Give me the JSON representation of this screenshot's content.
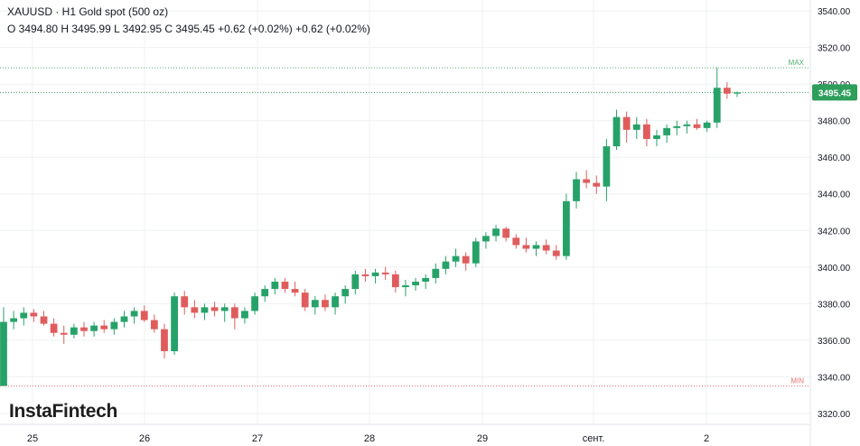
{
  "header": {
    "title": "XAUUSD · H1 Gold spot (500 oz)",
    "ohlc": "O 3494.80 H 3495.99 L 3492.95 C 3495.45 +0.62 (+0.02%) +0.62 (+0.02%)"
  },
  "logo": "InstaFintech",
  "colors": {
    "up": "#26a269",
    "down": "#e05c5c",
    "max_line": "#4caf6e",
    "min_line": "#e57373",
    "last_price_bg": "#2e9e5b"
  },
  "chart_data": {
    "type": "candlestick",
    "symbol": "XAUUSD",
    "timeframe": "H1",
    "y_axis": {
      "ticks": [
        "3320.00",
        "3340.00",
        "3360.00",
        "3380.00",
        "3400.00",
        "3420.00",
        "3440.00",
        "3460.00",
        "3480.00",
        "3500.00",
        "3520.00",
        "3540.00"
      ],
      "range": [
        3314,
        3546
      ]
    },
    "x_axis": {
      "ticks": [
        "25",
        "26",
        "27",
        "28",
        "29",
        "сент.",
        "2"
      ]
    },
    "max_line": {
      "label": "MAX",
      "value": 3509
    },
    "min_line": {
      "label": "MIN",
      "value": 3335
    },
    "last_price": {
      "label": "3495.45",
      "value": 3495.45
    },
    "ohlc": [
      [
        3335,
        3378,
        3335,
        3370
      ],
      [
        3370,
        3376,
        3366,
        3372
      ],
      [
        3372,
        3378,
        3368,
        3375
      ],
      [
        3375,
        3377,
        3370,
        3373
      ],
      [
        3373,
        3376,
        3368,
        3369
      ],
      [
        3369,
        3372,
        3362,
        3364
      ],
      [
        3364,
        3368,
        3358,
        3363
      ],
      [
        3363,
        3369,
        3361,
        3367
      ],
      [
        3367,
        3370,
        3362,
        3365
      ],
      [
        3365,
        3370,
        3362,
        3368
      ],
      [
        3368,
        3371,
        3364,
        3366
      ],
      [
        3366,
        3372,
        3363,
        3370
      ],
      [
        3370,
        3376,
        3367,
        3373
      ],
      [
        3373,
        3378,
        3369,
        3376
      ],
      [
        3376,
        3379,
        3370,
        3371
      ],
      [
        3371,
        3374,
        3364,
        3366
      ],
      [
        3366,
        3369,
        3350,
        3354
      ],
      [
        3354,
        3386,
        3352,
        3384
      ],
      [
        3384,
        3387,
        3374,
        3378
      ],
      [
        3378,
        3382,
        3372,
        3375
      ],
      [
        3375,
        3380,
        3371,
        3378
      ],
      [
        3378,
        3381,
        3373,
        3376
      ],
      [
        3376,
        3380,
        3370,
        3378
      ],
      [
        3378,
        3380,
        3366,
        3372
      ],
      [
        3372,
        3378,
        3369,
        3376
      ],
      [
        3376,
        3386,
        3374,
        3384
      ],
      [
        3384,
        3390,
        3381,
        3388
      ],
      [
        3388,
        3394,
        3385,
        3392
      ],
      [
        3392,
        3394,
        3386,
        3388
      ],
      [
        3388,
        3392,
        3384,
        3386
      ],
      [
        3386,
        3388,
        3376,
        3378
      ],
      [
        3378,
        3384,
        3374,
        3382
      ],
      [
        3382,
        3385,
        3376,
        3378
      ],
      [
        3378,
        3386,
        3374,
        3384
      ],
      [
        3384,
        3390,
        3380,
        3388
      ],
      [
        3388,
        3398,
        3385,
        3396
      ],
      [
        3396,
        3399,
        3392,
        3395
      ],
      [
        3395,
        3399,
        3391,
        3397
      ],
      [
        3397,
        3400,
        3393,
        3396
      ],
      [
        3396,
        3398,
        3386,
        3389
      ],
      [
        3389,
        3393,
        3384,
        3390
      ],
      [
        3390,
        3394,
        3387,
        3392
      ],
      [
        3392,
        3396,
        3388,
        3394
      ],
      [
        3394,
        3402,
        3391,
        3399
      ],
      [
        3399,
        3406,
        3396,
        3403
      ],
      [
        3403,
        3410,
        3400,
        3406
      ],
      [
        3406,
        3408,
        3398,
        3402
      ],
      [
        3402,
        3416,
        3400,
        3414
      ],
      [
        3414,
        3419,
        3410,
        3417
      ],
      [
        3417,
        3423,
        3414,
        3421
      ],
      [
        3421,
        3422,
        3414,
        3416
      ],
      [
        3416,
        3418,
        3410,
        3412
      ],
      [
        3412,
        3416,
        3408,
        3410
      ],
      [
        3410,
        3414,
        3406,
        3412
      ],
      [
        3412,
        3415,
        3407,
        3409
      ],
      [
        3409,
        3412,
        3404,
        3406
      ],
      [
        3406,
        3440,
        3404,
        3436
      ],
      [
        3436,
        3452,
        3432,
        3448
      ],
      [
        3448,
        3453,
        3443,
        3446
      ],
      [
        3446,
        3450,
        3440,
        3444
      ],
      [
        3444,
        3470,
        3436,
        3466
      ],
      [
        3466,
        3486,
        3464,
        3482
      ],
      [
        3482,
        3485,
        3468,
        3475
      ],
      [
        3475,
        3482,
        3470,
        3478
      ],
      [
        3478,
        3481,
        3466,
        3470
      ],
      [
        3470,
        3475,
        3466,
        3472
      ],
      [
        3472,
        3478,
        3468,
        3476
      ],
      [
        3476,
        3480,
        3472,
        3477
      ],
      [
        3477,
        3480,
        3473,
        3478
      ],
      [
        3478,
        3481,
        3475,
        3476
      ],
      [
        3476,
        3480,
        3474,
        3479
      ],
      [
        3479,
        3509,
        3476,
        3498
      ],
      [
        3498,
        3501,
        3492,
        3494.8
      ],
      [
        3494.8,
        3495.99,
        3492.95,
        3495.45
      ]
    ]
  }
}
